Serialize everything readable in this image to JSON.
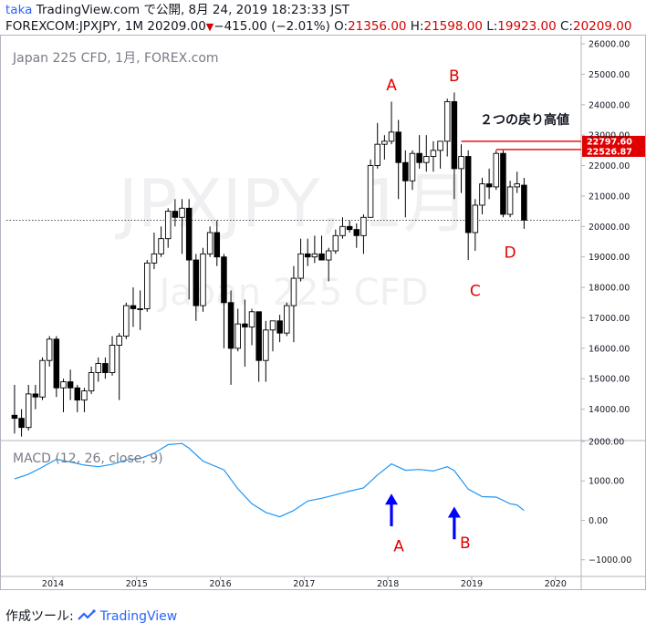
{
  "header": {
    "author": "taka",
    "line1_rest": " TradingView.com で公開, 8月 24, 2019 18:23:33 JST",
    "line2_symbol": "FOREXCOM:JPXJPY, 1M 20209.00",
    "change": "−415.00 (−2.01%)",
    "o_label": " O:",
    "o_value": "21356.00",
    "h_label": " H:",
    "h_value": "21598.00",
    "l_label": " L:",
    "l_value": "19923.00",
    "c_label": " C:",
    "c_value": "20209.00"
  },
  "footer": {
    "made_with": "作成ツール:",
    "brand": "TradingView"
  },
  "colors": {
    "up": "#ffffff",
    "down": "#000000",
    "wick": "#000000",
    "macd": "#2196f3",
    "annotation": "#e00000",
    "arrow": "#0000ff",
    "price_tag": "#e00000"
  },
  "chart_data": [
    {
      "type": "candlestick",
      "title": "Japan 225 CFD, 1月, FOREX.com",
      "watermark": "JPXJPY, 1月",
      "watermark_sub": "Japan 225 CFD",
      "ylim": [
        13000,
        26300
      ],
      "yticks": [
        14000,
        15000,
        16000,
        17000,
        18000,
        19000,
        20000,
        21000,
        22000,
        23000,
        24000,
        25000,
        26000
      ],
      "ytick_labels": [
        "14000.00",
        "15000.00",
        "16000.00",
        "17000.00",
        "18000.00",
        "19000.00",
        "20000.00",
        "21000.00",
        "22000.00",
        "23000.00",
        "24000.00",
        "25000.00",
        "26000.00"
      ],
      "xticks": [
        "2014",
        "2015",
        "2016",
        "2017",
        "2018",
        "2019",
        "2020"
      ],
      "last_price": 20209.0,
      "price_lines": [
        {
          "value": 22797.6,
          "label": "22797.60"
        },
        {
          "value": 22526.87,
          "label": "22526.87"
        }
      ],
      "annotations": [
        {
          "text": "A",
          "date": "2018-01",
          "value": 24650
        },
        {
          "text": "B",
          "date": "2018-10",
          "value": 24950
        },
        {
          "text": "C",
          "date": "2019-01",
          "value": 17900
        },
        {
          "text": "D",
          "date": "2019-06",
          "value": 19150
        },
        {
          "text": "２つの戻り高値",
          "date": "2019-01",
          "value": 23550
        }
      ],
      "candles": [
        {
          "d": "2013-07",
          "o": 13800,
          "h": 14800,
          "l": 13200,
          "c": 13700
        },
        {
          "d": "2013-08",
          "o": 13700,
          "h": 14000,
          "l": 13100,
          "c": 13400
        },
        {
          "d": "2013-09",
          "o": 13400,
          "h": 14800,
          "l": 13300,
          "c": 14500
        },
        {
          "d": "2013-10",
          "o": 14500,
          "h": 14800,
          "l": 14000,
          "c": 14400
        },
        {
          "d": "2013-11",
          "o": 14400,
          "h": 15700,
          "l": 14300,
          "c": 15600
        },
        {
          "d": "2013-12",
          "o": 15600,
          "h": 16400,
          "l": 15400,
          "c": 16300
        },
        {
          "d": "2014-01",
          "o": 16300,
          "h": 16400,
          "l": 14400,
          "c": 14700
        },
        {
          "d": "2014-02",
          "o": 14700,
          "h": 15000,
          "l": 13900,
          "c": 14900
        },
        {
          "d": "2014-03",
          "o": 14900,
          "h": 15300,
          "l": 14300,
          "c": 14700
        },
        {
          "d": "2014-04",
          "o": 14700,
          "h": 14800,
          "l": 13900,
          "c": 14300
        },
        {
          "d": "2014-05",
          "o": 14300,
          "h": 14700,
          "l": 13900,
          "c": 14600
        },
        {
          "d": "2014-06",
          "o": 14600,
          "h": 15400,
          "l": 14500,
          "c": 15200
        },
        {
          "d": "2014-07",
          "o": 15200,
          "h": 15700,
          "l": 14900,
          "c": 15500
        },
        {
          "d": "2014-08",
          "o": 15500,
          "h": 15700,
          "l": 15000,
          "c": 15200
        },
        {
          "d": "2014-09",
          "o": 15200,
          "h": 16400,
          "l": 15100,
          "c": 16100
        },
        {
          "d": "2014-10",
          "o": 16100,
          "h": 16500,
          "l": 14300,
          "c": 16400
        },
        {
          "d": "2014-11",
          "o": 16400,
          "h": 17500,
          "l": 16300,
          "c": 17400
        },
        {
          "d": "2014-12",
          "o": 17400,
          "h": 18000,
          "l": 16700,
          "c": 17300
        },
        {
          "d": "2015-01",
          "o": 17300,
          "h": 17900,
          "l": 16600,
          "c": 17300
        },
        {
          "d": "2015-02",
          "o": 17300,
          "h": 18900,
          "l": 17200,
          "c": 18800
        },
        {
          "d": "2015-03",
          "o": 18800,
          "h": 19800,
          "l": 18600,
          "c": 19100
        },
        {
          "d": "2015-04",
          "o": 19100,
          "h": 20000,
          "l": 19000,
          "c": 19600
        },
        {
          "d": "2015-05",
          "o": 19600,
          "h": 20600,
          "l": 19300,
          "c": 20500
        },
        {
          "d": "2015-06",
          "o": 20500,
          "h": 20900,
          "l": 20000,
          "c": 20300
        },
        {
          "d": "2015-07",
          "o": 20300,
          "h": 20900,
          "l": 19100,
          "c": 20600
        },
        {
          "d": "2015-08",
          "o": 20600,
          "h": 20900,
          "l": 17600,
          "c": 18900
        },
        {
          "d": "2015-09",
          "o": 18900,
          "h": 19100,
          "l": 16900,
          "c": 17400
        },
        {
          "d": "2015-10",
          "o": 17400,
          "h": 19300,
          "l": 17200,
          "c": 19100
        },
        {
          "d": "2015-11",
          "o": 19100,
          "h": 20000,
          "l": 19000,
          "c": 19800
        },
        {
          "d": "2015-12",
          "o": 19800,
          "h": 20200,
          "l": 18700,
          "c": 19000
        },
        {
          "d": "2016-01",
          "o": 19000,
          "h": 19100,
          "l": 16000,
          "c": 17500
        },
        {
          "d": "2016-02",
          "o": 17500,
          "h": 17900,
          "l": 14800,
          "c": 16000
        },
        {
          "d": "2016-03",
          "o": 16000,
          "h": 17300,
          "l": 15900,
          "c": 16800
        },
        {
          "d": "2016-04",
          "o": 16800,
          "h": 17600,
          "l": 15400,
          "c": 16700
        },
        {
          "d": "2016-05",
          "o": 16700,
          "h": 17300,
          "l": 16100,
          "c": 17200
        },
        {
          "d": "2016-06",
          "o": 17200,
          "h": 17200,
          "l": 14900,
          "c": 15600
        },
        {
          "d": "2016-07",
          "o": 15600,
          "h": 16900,
          "l": 14900,
          "c": 16600
        },
        {
          "d": "2016-08",
          "o": 16600,
          "h": 16800,
          "l": 15900,
          "c": 16900
        },
        {
          "d": "2016-09",
          "o": 16900,
          "h": 17100,
          "l": 16200,
          "c": 16500
        },
        {
          "d": "2016-10",
          "o": 16500,
          "h": 17500,
          "l": 16400,
          "c": 17400
        },
        {
          "d": "2016-11",
          "o": 17400,
          "h": 18700,
          "l": 16200,
          "c": 18300
        },
        {
          "d": "2016-12",
          "o": 18300,
          "h": 19600,
          "l": 18200,
          "c": 19100
        },
        {
          "d": "2017-01",
          "o": 19100,
          "h": 19600,
          "l": 18700,
          "c": 19000
        },
        {
          "d": "2017-02",
          "o": 19000,
          "h": 19700,
          "l": 18800,
          "c": 19100
        },
        {
          "d": "2017-03",
          "o": 19100,
          "h": 19700,
          "l": 18900,
          "c": 18900
        },
        {
          "d": "2017-04",
          "o": 18900,
          "h": 19300,
          "l": 18200,
          "c": 19200
        },
        {
          "d": "2017-05",
          "o": 19200,
          "h": 19900,
          "l": 19100,
          "c": 19700
        },
        {
          "d": "2017-06",
          "o": 19700,
          "h": 20300,
          "l": 19600,
          "c": 20000
        },
        {
          "d": "2017-07",
          "o": 20000,
          "h": 20200,
          "l": 19800,
          "c": 19900
        },
        {
          "d": "2017-08",
          "o": 19900,
          "h": 20100,
          "l": 19300,
          "c": 19700
        },
        {
          "d": "2017-09",
          "o": 19700,
          "h": 20400,
          "l": 19100,
          "c": 20300
        },
        {
          "d": "2017-10",
          "o": 20300,
          "h": 22200,
          "l": 20300,
          "c": 22000
        },
        {
          "d": "2017-11",
          "o": 22000,
          "h": 23400,
          "l": 21900,
          "c": 22700
        },
        {
          "d": "2017-12",
          "o": 22700,
          "h": 23000,
          "l": 22200,
          "c": 22800
        },
        {
          "d": "2018-01",
          "o": 22800,
          "h": 24100,
          "l": 22700,
          "c": 23100
        },
        {
          "d": "2018-02",
          "o": 23100,
          "h": 23500,
          "l": 20900,
          "c": 22100
        },
        {
          "d": "2018-03",
          "o": 22100,
          "h": 22500,
          "l": 20300,
          "c": 21500
        },
        {
          "d": "2018-04",
          "o": 21500,
          "h": 22500,
          "l": 21200,
          "c": 22400
        },
        {
          "d": "2018-05",
          "o": 22400,
          "h": 23000,
          "l": 21900,
          "c": 22100
        },
        {
          "d": "2018-06",
          "o": 22100,
          "h": 23000,
          "l": 21800,
          "c": 22300
        },
        {
          "d": "2018-07",
          "o": 22300,
          "h": 22800,
          "l": 21800,
          "c": 22500
        },
        {
          "d": "2018-08",
          "o": 22500,
          "h": 22800,
          "l": 21900,
          "c": 22800
        },
        {
          "d": "2018-09",
          "o": 22800,
          "h": 24200,
          "l": 22300,
          "c": 24100
        },
        {
          "d": "2018-10",
          "o": 24100,
          "h": 24400,
          "l": 20900,
          "c": 21900
        },
        {
          "d": "2018-11",
          "o": 21900,
          "h": 22700,
          "l": 21100,
          "c": 22300
        },
        {
          "d": "2018-12",
          "o": 22300,
          "h": 22500,
          "l": 18900,
          "c": 19800
        },
        {
          "d": "2019-01",
          "o": 19800,
          "h": 20900,
          "l": 19200,
          "c": 20700
        },
        {
          "d": "2019-02",
          "o": 20700,
          "h": 21600,
          "l": 20400,
          "c": 21400
        },
        {
          "d": "2019-03",
          "o": 21400,
          "h": 21900,
          "l": 20900,
          "c": 21300
        },
        {
          "d": "2019-04",
          "o": 21300,
          "h": 22500,
          "l": 21200,
          "c": 22400
        },
        {
          "d": "2019-05",
          "o": 22400,
          "h": 22500,
          "l": 20300,
          "c": 20400
        },
        {
          "d": "2019-06",
          "o": 20400,
          "h": 21500,
          "l": 20300,
          "c": 21300
        },
        {
          "d": "2019-07",
          "o": 21300,
          "h": 21800,
          "l": 21100,
          "c": 21400
        },
        {
          "d": "2019-08",
          "o": 21356,
          "h": 21598,
          "l": 19923,
          "c": 20209
        }
      ]
    },
    {
      "type": "line",
      "title": "MACD (12, 26, close, 9)",
      "ylim": [
        -1400,
        2000
      ],
      "yticks": [
        -1000,
        0,
        1000,
        2000
      ],
      "ytick_labels": [
        "−1000.00",
        "0.00",
        "1000.00",
        "2000.00"
      ],
      "annotations": [
        {
          "text": "A",
          "date": "2018-01",
          "value": -650
        },
        {
          "text": "B",
          "date": "2018-10",
          "value": -570
        }
      ],
      "arrows": [
        {
          "date": "2018-01",
          "from": -150,
          "to": 630
        },
        {
          "date": "2018-10",
          "from": -480,
          "to": 300
        }
      ],
      "series": [
        {
          "values": [
            {
              "d": "2013-07",
              "v": 1050
            },
            {
              "d": "2013-09",
              "v": 1170
            },
            {
              "d": "2013-11",
              "v": 1350
            },
            {
              "d": "2014-01",
              "v": 1550
            },
            {
              "d": "2014-03",
              "v": 1480
            },
            {
              "d": "2014-05",
              "v": 1400
            },
            {
              "d": "2014-07",
              "v": 1360
            },
            {
              "d": "2014-09",
              "v": 1420
            },
            {
              "d": "2014-11",
              "v": 1530
            },
            {
              "d": "2015-01",
              "v": 1570
            },
            {
              "d": "2015-03",
              "v": 1700
            },
            {
              "d": "2015-05",
              "v": 1920
            },
            {
              "d": "2015-07",
              "v": 1950
            },
            {
              "d": "2015-08",
              "v": 1830
            },
            {
              "d": "2015-10",
              "v": 1500
            },
            {
              "d": "2016-01",
              "v": 1280
            },
            {
              "d": "2016-03",
              "v": 800
            },
            {
              "d": "2016-05",
              "v": 420
            },
            {
              "d": "2016-07",
              "v": 200
            },
            {
              "d": "2016-09",
              "v": 90
            },
            {
              "d": "2016-11",
              "v": 250
            },
            {
              "d": "2017-01",
              "v": 490
            },
            {
              "d": "2017-03",
              "v": 560
            },
            {
              "d": "2017-05",
              "v": 650
            },
            {
              "d": "2017-07",
              "v": 740
            },
            {
              "d": "2017-09",
              "v": 820
            },
            {
              "d": "2017-11",
              "v": 1150
            },
            {
              "d": "2018-01",
              "v": 1430
            },
            {
              "d": "2018-03",
              "v": 1270
            },
            {
              "d": "2018-05",
              "v": 1290
            },
            {
              "d": "2018-07",
              "v": 1250
            },
            {
              "d": "2018-09",
              "v": 1360
            },
            {
              "d": "2018-10",
              "v": 1260
            },
            {
              "d": "2018-12",
              "v": 790
            },
            {
              "d": "2019-02",
              "v": 600
            },
            {
              "d": "2019-04",
              "v": 590
            },
            {
              "d": "2019-06",
              "v": 420
            },
            {
              "d": "2019-07",
              "v": 390
            },
            {
              "d": "2019-08",
              "v": 250
            }
          ]
        }
      ]
    }
  ]
}
